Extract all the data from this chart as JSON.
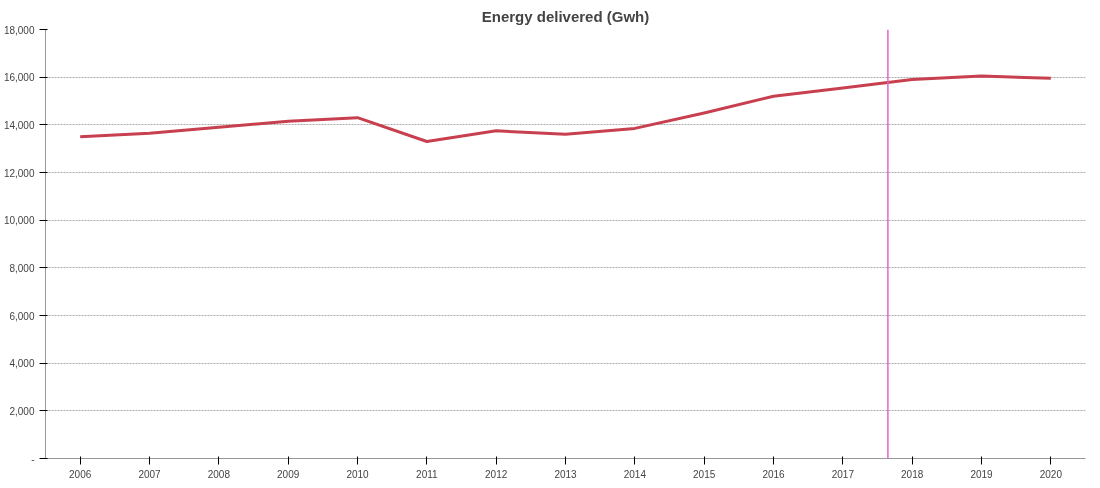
{
  "chart_data": {
    "type": "line",
    "title": "Energy delivered (Gwh)",
    "x": [
      2006,
      2007,
      2008,
      2009,
      2010,
      2011,
      2012,
      2013,
      2014,
      2015,
      2016,
      2017,
      2018,
      2019,
      2020
    ],
    "series": [
      {
        "color": "#c8404f",
        "values": [
          13500,
          13650,
          13900,
          14150,
          14300,
          13300,
          13750,
          13600,
          13850,
          14500,
          15200,
          15550,
          15900,
          16050,
          15950
        ]
      }
    ],
    "xlim": [
      2005.5,
      2020.5
    ],
    "xticks": [
      2006,
      2007,
      2008,
      2009,
      2010,
      2011,
      2012,
      2013,
      2014,
      2015,
      2016,
      2017,
      2018,
      2019,
      2020
    ],
    "ylim": [
      0,
      18000
    ],
    "yticks": [
      {
        "value": 0,
        "label": "-"
      },
      {
        "value": 2000,
        "label": "2,000"
      },
      {
        "value": 4000,
        "label": "4,000"
      },
      {
        "value": 6000,
        "label": "6,000"
      },
      {
        "value": 8000,
        "label": "8,000"
      },
      {
        "value": 10000,
        "label": "10,000"
      },
      {
        "value": 12000,
        "label": "12,000"
      },
      {
        "value": 14000,
        "label": "14,000"
      },
      {
        "value": 16000,
        "label": "16,000"
      },
      {
        "value": 18000,
        "label": "18,000"
      }
    ],
    "ref_lines": [
      {
        "axis": "x",
        "value": 2017.65,
        "color": "#e066c8"
      }
    ],
    "grid": "y",
    "marker": "none",
    "line_style": "solid"
  }
}
